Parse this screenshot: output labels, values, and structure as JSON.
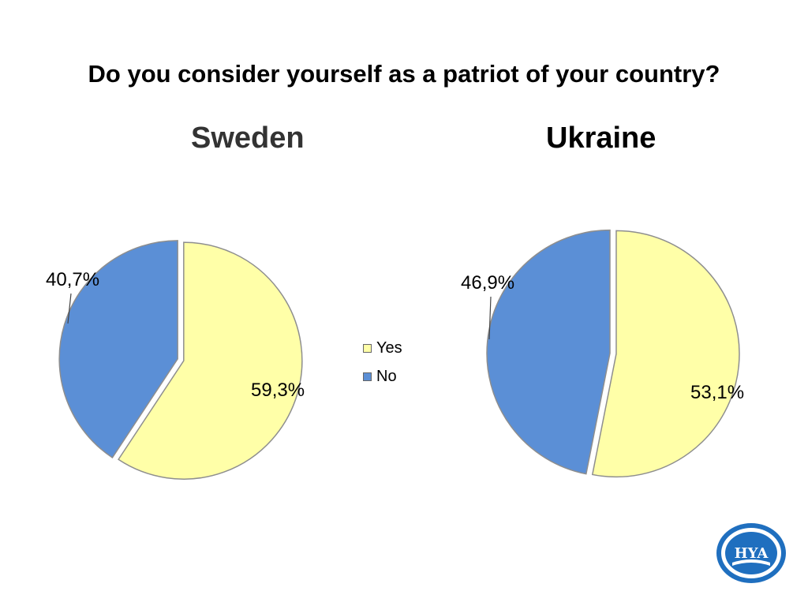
{
  "slide": {
    "title": "Do you consider yourself as a patriot of your country?"
  },
  "colors": {
    "yes": "#FFFFA8",
    "no": "#5B8FD6",
    "outline": "#8E8E8E"
  },
  "legend": [
    {
      "label": "Yes",
      "color": "#FFFFA8"
    },
    {
      "label": "No",
      "color": "#5B8FD6"
    }
  ],
  "logo": {
    "text": "HYA"
  },
  "chart_data": [
    {
      "type": "pie",
      "title": "Sweden",
      "categories": [
        "Yes",
        "No"
      ],
      "values": [
        59.3,
        40.7
      ],
      "labels": [
        "59,3%",
        "40,7%"
      ],
      "legend": "right"
    },
    {
      "type": "pie",
      "title": "Ukraine",
      "categories": [
        "Yes",
        "No"
      ],
      "values": [
        53.1,
        46.9
      ],
      "labels": [
        "53,1%",
        "46,9%"
      ],
      "legend": "left"
    }
  ]
}
